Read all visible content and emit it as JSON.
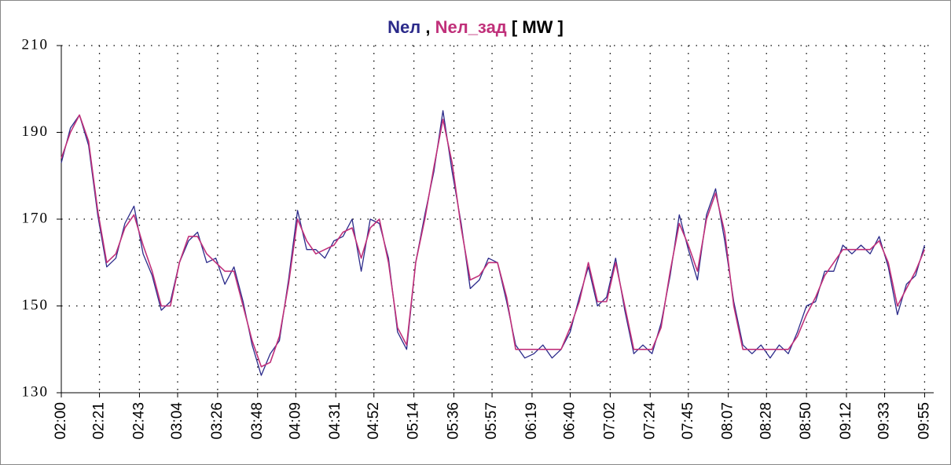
{
  "chart_data": {
    "type": "line",
    "title_sep": ",",
    "unit": "[ MW ]",
    "x": [
      "02:00",
      "02:05",
      "02:10",
      "02:15",
      "02:20",
      "02:25",
      "02:30",
      "02:35",
      "02:40",
      "02:45",
      "02:50",
      "02:55",
      "03:00",
      "03:05",
      "03:10",
      "03:15",
      "03:20",
      "03:25",
      "03:30",
      "03:35",
      "03:40",
      "03:45",
      "03:50",
      "03:55",
      "04:00",
      "04:05",
      "04:10",
      "04:15",
      "04:20",
      "04:25",
      "04:30",
      "04:35",
      "04:40",
      "04:45",
      "04:50",
      "04:55",
      "05:00",
      "05:05",
      "05:10",
      "05:15",
      "05:20",
      "05:25",
      "05:30",
      "05:35",
      "05:40",
      "05:45",
      "05:50",
      "05:55",
      "06:00",
      "06:05",
      "06:10",
      "06:15",
      "06:20",
      "06:25",
      "06:30",
      "06:35",
      "06:40",
      "06:45",
      "06:50",
      "06:55",
      "07:00",
      "07:05",
      "07:10",
      "07:15",
      "07:20",
      "07:25",
      "07:30",
      "07:35",
      "07:40",
      "07:45",
      "07:50",
      "07:55",
      "08:00",
      "08:05",
      "08:10",
      "08:15",
      "08:20",
      "08:25",
      "08:30",
      "08:35",
      "08:40",
      "08:45",
      "08:50",
      "08:55",
      "09:00",
      "09:05",
      "09:10",
      "09:15",
      "09:20",
      "09:25",
      "09:30",
      "09:35",
      "09:40",
      "09:45",
      "09:50",
      "09:55"
    ],
    "series": [
      {
        "name": "Nел",
        "color": "#2b2a8a",
        "values": [
          183,
          191,
          194,
          187,
          171,
          159,
          161,
          169,
          173,
          162,
          157,
          149,
          151,
          160,
          165,
          167,
          160,
          161,
          155,
          159,
          151,
          141,
          134,
          139,
          142,
          156,
          172,
          163,
          163,
          161,
          165,
          166,
          170,
          158,
          170,
          169,
          161,
          144,
          140,
          160,
          171,
          181,
          195,
          181,
          169,
          154,
          156,
          161,
          160,
          151,
          141,
          138,
          139,
          141,
          138,
          140,
          144,
          152,
          159,
          150,
          152,
          161,
          149,
          139,
          141,
          139,
          146,
          157,
          171,
          163,
          156,
          171,
          177,
          165,
          151,
          141,
          139,
          141,
          138,
          141,
          139,
          144,
          150,
          151,
          158,
          158,
          164,
          162,
          164,
          162,
          166,
          159,
          148,
          155,
          157,
          164
        ]
      },
      {
        "name": "Nел_зад",
        "color": "#c0307a",
        "values": [
          184,
          190,
          194,
          188,
          172,
          160,
          162,
          168,
          171,
          164,
          158,
          150,
          150,
          160,
          166,
          166,
          162,
          160,
          158,
          158,
          150,
          142,
          136,
          137,
          143,
          155,
          170,
          165,
          162,
          163,
          164,
          167,
          168,
          161,
          168,
          170,
          160,
          145,
          141,
          160,
          170,
          182,
          193,
          183,
          168,
          156,
          157,
          160,
          160,
          152,
          140,
          140,
          140,
          140,
          140,
          140,
          145,
          151,
          160,
          151,
          151,
          160,
          150,
          140,
          140,
          140,
          145,
          158,
          169,
          164,
          158,
          170,
          176,
          167,
          150,
          140,
          140,
          140,
          140,
          140,
          140,
          143,
          148,
          152,
          157,
          160,
          163,
          163,
          163,
          163,
          165,
          160,
          150,
          154,
          158,
          163
        ]
      }
    ],
    "xlim": [
      "02:00",
      "10:00"
    ],
    "xticks": [
      "02:00",
      "02:21",
      "02:43",
      "03:04",
      "03:26",
      "03:48",
      "04:09",
      "04:31",
      "04:52",
      "05:14",
      "05:36",
      "05:57",
      "06:19",
      "06:40",
      "07:02",
      "07:24",
      "07:45",
      "08:07",
      "08:28",
      "08:50",
      "09:12",
      "09:33",
      "09:55"
    ],
    "ylim": [
      130,
      210
    ],
    "yticks": [
      130,
      150,
      170,
      190,
      210
    ],
    "grid": true
  }
}
